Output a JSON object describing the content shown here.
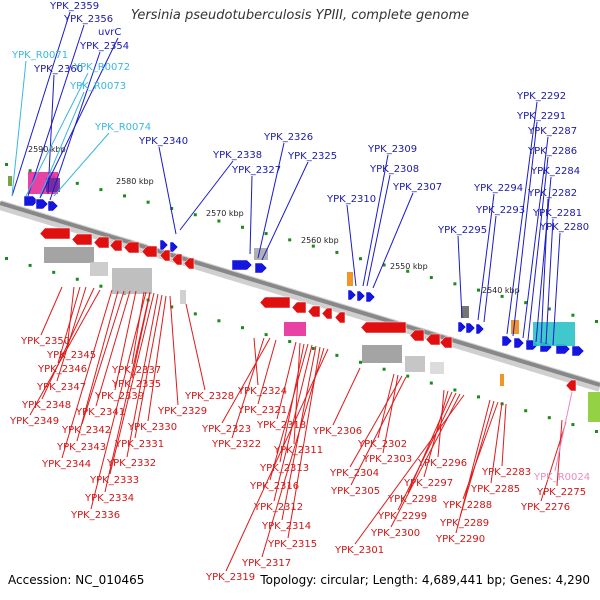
{
  "title": "Yersinia pseudotuberculosis YPIII, complete genome",
  "footer": {
    "accession": "Accession: NC_010465",
    "summary": "Topology: circular; Length: 4,689,441 bp; Genes: 4,290"
  },
  "colors": {
    "forward_label": "#1a1aaa",
    "reverse_label": "#d01515",
    "rna_label": "#38b8e0",
    "pseudo_label": "#e88ac0",
    "forward_arrow": "#1515e0",
    "reverse_arrow": "#e01010",
    "backbone": "#888888",
    "tick": "#1a8a1a"
  },
  "scale_labels": [
    "2590 kbp",
    "2580 kbp",
    "2570 kbp",
    "2560 kbp",
    "2550 kbp",
    "2540 kbp"
  ],
  "forward_labels": [
    "YPK_2359",
    "YPK_2356",
    "uvrC",
    "YPK_2354",
    "YPK_2360",
    "YPK_2340",
    "YPK_2338",
    "YPK_2326",
    "YPK_2327",
    "YPK_2325",
    "YPK_2309",
    "YPK_2308",
    "YPK_2307",
    "YPK_2310",
    "YPK_2295",
    "YPK_2294",
    "YPK_2293",
    "YPK_2292",
    "YPK_2291",
    "YPK_2287",
    "YPK_2286",
    "YPK_2284",
    "YPK_2282",
    "YPK_2281",
    "YPK_2280"
  ],
  "rna_labels": [
    "YPK_R0071",
    "YPK_R0072",
    "YPK_R0073",
    "YPK_R0074"
  ],
  "reverse_labels": [
    "YPK_2350",
    "YPK_2345",
    "YPK_2346",
    "YPK_2347",
    "YPK_2348",
    "YPK_2349",
    "YPK_2337",
    "YPK_2335",
    "YPK_2339",
    "YPK_2341",
    "YPK_2342",
    "YPK_2343",
    "YPK_2344",
    "YPK_2329",
    "YPK_2330",
    "YPK_2331",
    "YPK_2332",
    "YPK_2333",
    "YPK_2334",
    "YPK_2336",
    "YPK_2328",
    "YPK_2324",
    "YPK_2321",
    "YPK_2323",
    "YPK_2322",
    "YPK_2318",
    "YPK_2311",
    "YPK_2313",
    "YPK_2316",
    "YPK_2312",
    "YPK_2314",
    "YPK_2315",
    "YPK_2317",
    "YPK_2319",
    "YPK_2306",
    "YPK_2302",
    "YPK_2303",
    "YPK_2304",
    "YPK_2305",
    "YPK_2296",
    "YPK_2297",
    "YPK_2298",
    "YPK_2299",
    "YPK_2300",
    "YPK_2301",
    "YPK_2283",
    "YPK_2285",
    "YPK_2288",
    "YPK_2289",
    "YPK_2290",
    "YPK_2275",
    "YPK_2276"
  ],
  "pseudo_labels": [
    "YPK_R0024"
  ]
}
